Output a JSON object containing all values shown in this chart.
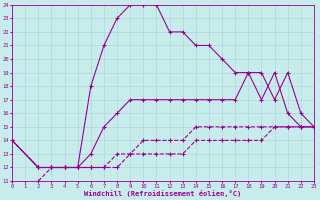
{
  "xlabel": "Windchill (Refroidissement éolien,°C)",
  "bg_color": "#c8ecec",
  "line_color": "#990099",
  "grid_color": "#b0d8d8",
  "xmin": 0,
  "xmax": 23,
  "ymin": 11,
  "ymax": 24,
  "series": [
    {
      "x": [
        0,
        2,
        3,
        4,
        5,
        6,
        7,
        8,
        9,
        10,
        11,
        12,
        13,
        14,
        15,
        16,
        17,
        18,
        19,
        20,
        21,
        22,
        23
      ],
      "y": [
        14,
        12,
        12,
        12,
        12,
        12,
        12,
        12,
        13,
        13,
        13,
        13,
        13,
        14,
        14,
        14,
        14,
        14,
        14,
        15,
        15,
        15,
        15
      ],
      "marker": "+",
      "markersize": 3.0,
      "linewidth": 0.8,
      "linestyle": "--"
    },
    {
      "x": [
        2,
        3,
        4,
        5,
        6,
        7,
        8,
        9,
        10,
        11,
        12,
        13,
        14,
        15,
        16,
        17,
        18,
        19,
        20,
        21,
        22,
        23
      ],
      "y": [
        11,
        12,
        12,
        12,
        12,
        12,
        13,
        13,
        14,
        14,
        14,
        14,
        15,
        15,
        15,
        15,
        15,
        15,
        15,
        15,
        15,
        15
      ],
      "marker": "+",
      "markersize": 3.0,
      "linewidth": 0.8,
      "linestyle": "--"
    },
    {
      "x": [
        0,
        2,
        3,
        4,
        5,
        6,
        7,
        8,
        9,
        10,
        11,
        12,
        13,
        14,
        15,
        16,
        17,
        18,
        19,
        20,
        21,
        22,
        23
      ],
      "y": [
        14,
        12,
        12,
        12,
        12,
        13,
        15,
        16,
        17,
        17,
        17,
        17,
        17,
        17,
        17,
        17,
        17,
        19,
        19,
        17,
        19,
        16,
        15
      ],
      "marker": "+",
      "markersize": 3.0,
      "linewidth": 0.8,
      "linestyle": "-"
    },
    {
      "x": [
        0,
        2,
        3,
        4,
        5,
        6,
        7,
        8,
        9,
        10,
        11,
        12,
        13,
        14,
        15,
        16,
        17,
        18,
        19,
        20,
        21,
        22,
        23
      ],
      "y": [
        14,
        12,
        12,
        12,
        12,
        18,
        21,
        23,
        24,
        24,
        24,
        22,
        22,
        21,
        21,
        20,
        19,
        19,
        17,
        19,
        16,
        15,
        15
      ],
      "marker": "+",
      "markersize": 3.5,
      "linewidth": 0.8,
      "linestyle": "-"
    }
  ]
}
